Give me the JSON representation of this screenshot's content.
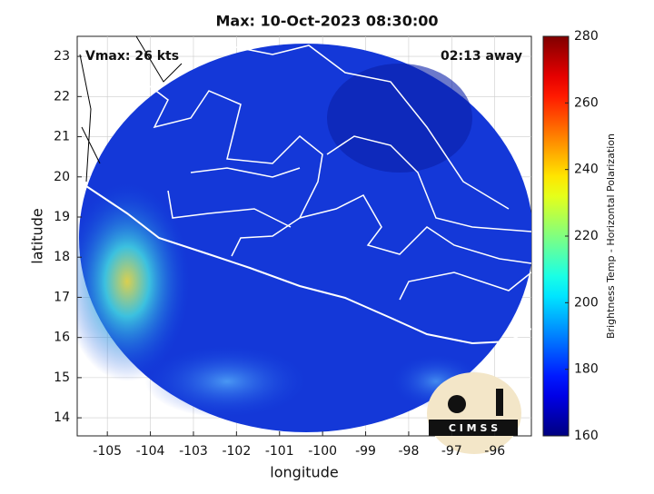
{
  "chart_data": {
    "type": "map",
    "title": "Max: 10-Oct-2023 08:30:00",
    "annotations": [
      "Vmax: 26 kts",
      "02:13 away"
    ],
    "x_label": "longitude",
    "y_label": "latitude",
    "xlim": [
      -105.7,
      -95.15
    ],
    "xticks": [
      -105,
      -104,
      -103,
      -102,
      -101,
      -100,
      -99,
      -98,
      -97,
      -96
    ],
    "ylim": [
      13.55,
      23.5
    ],
    "yticks": [
      14,
      15,
      16,
      17,
      18,
      19,
      20,
      21,
      22,
      23
    ],
    "grid": true,
    "colorbar": {
      "label": "Brightness Temp - Horizontal Polarization",
      "colormap": "jet",
      "lim": [
        160,
        280
      ],
      "ticks": [
        160,
        180,
        200,
        220,
        240,
        260,
        280
      ]
    },
    "logo": "C I M S S"
  }
}
